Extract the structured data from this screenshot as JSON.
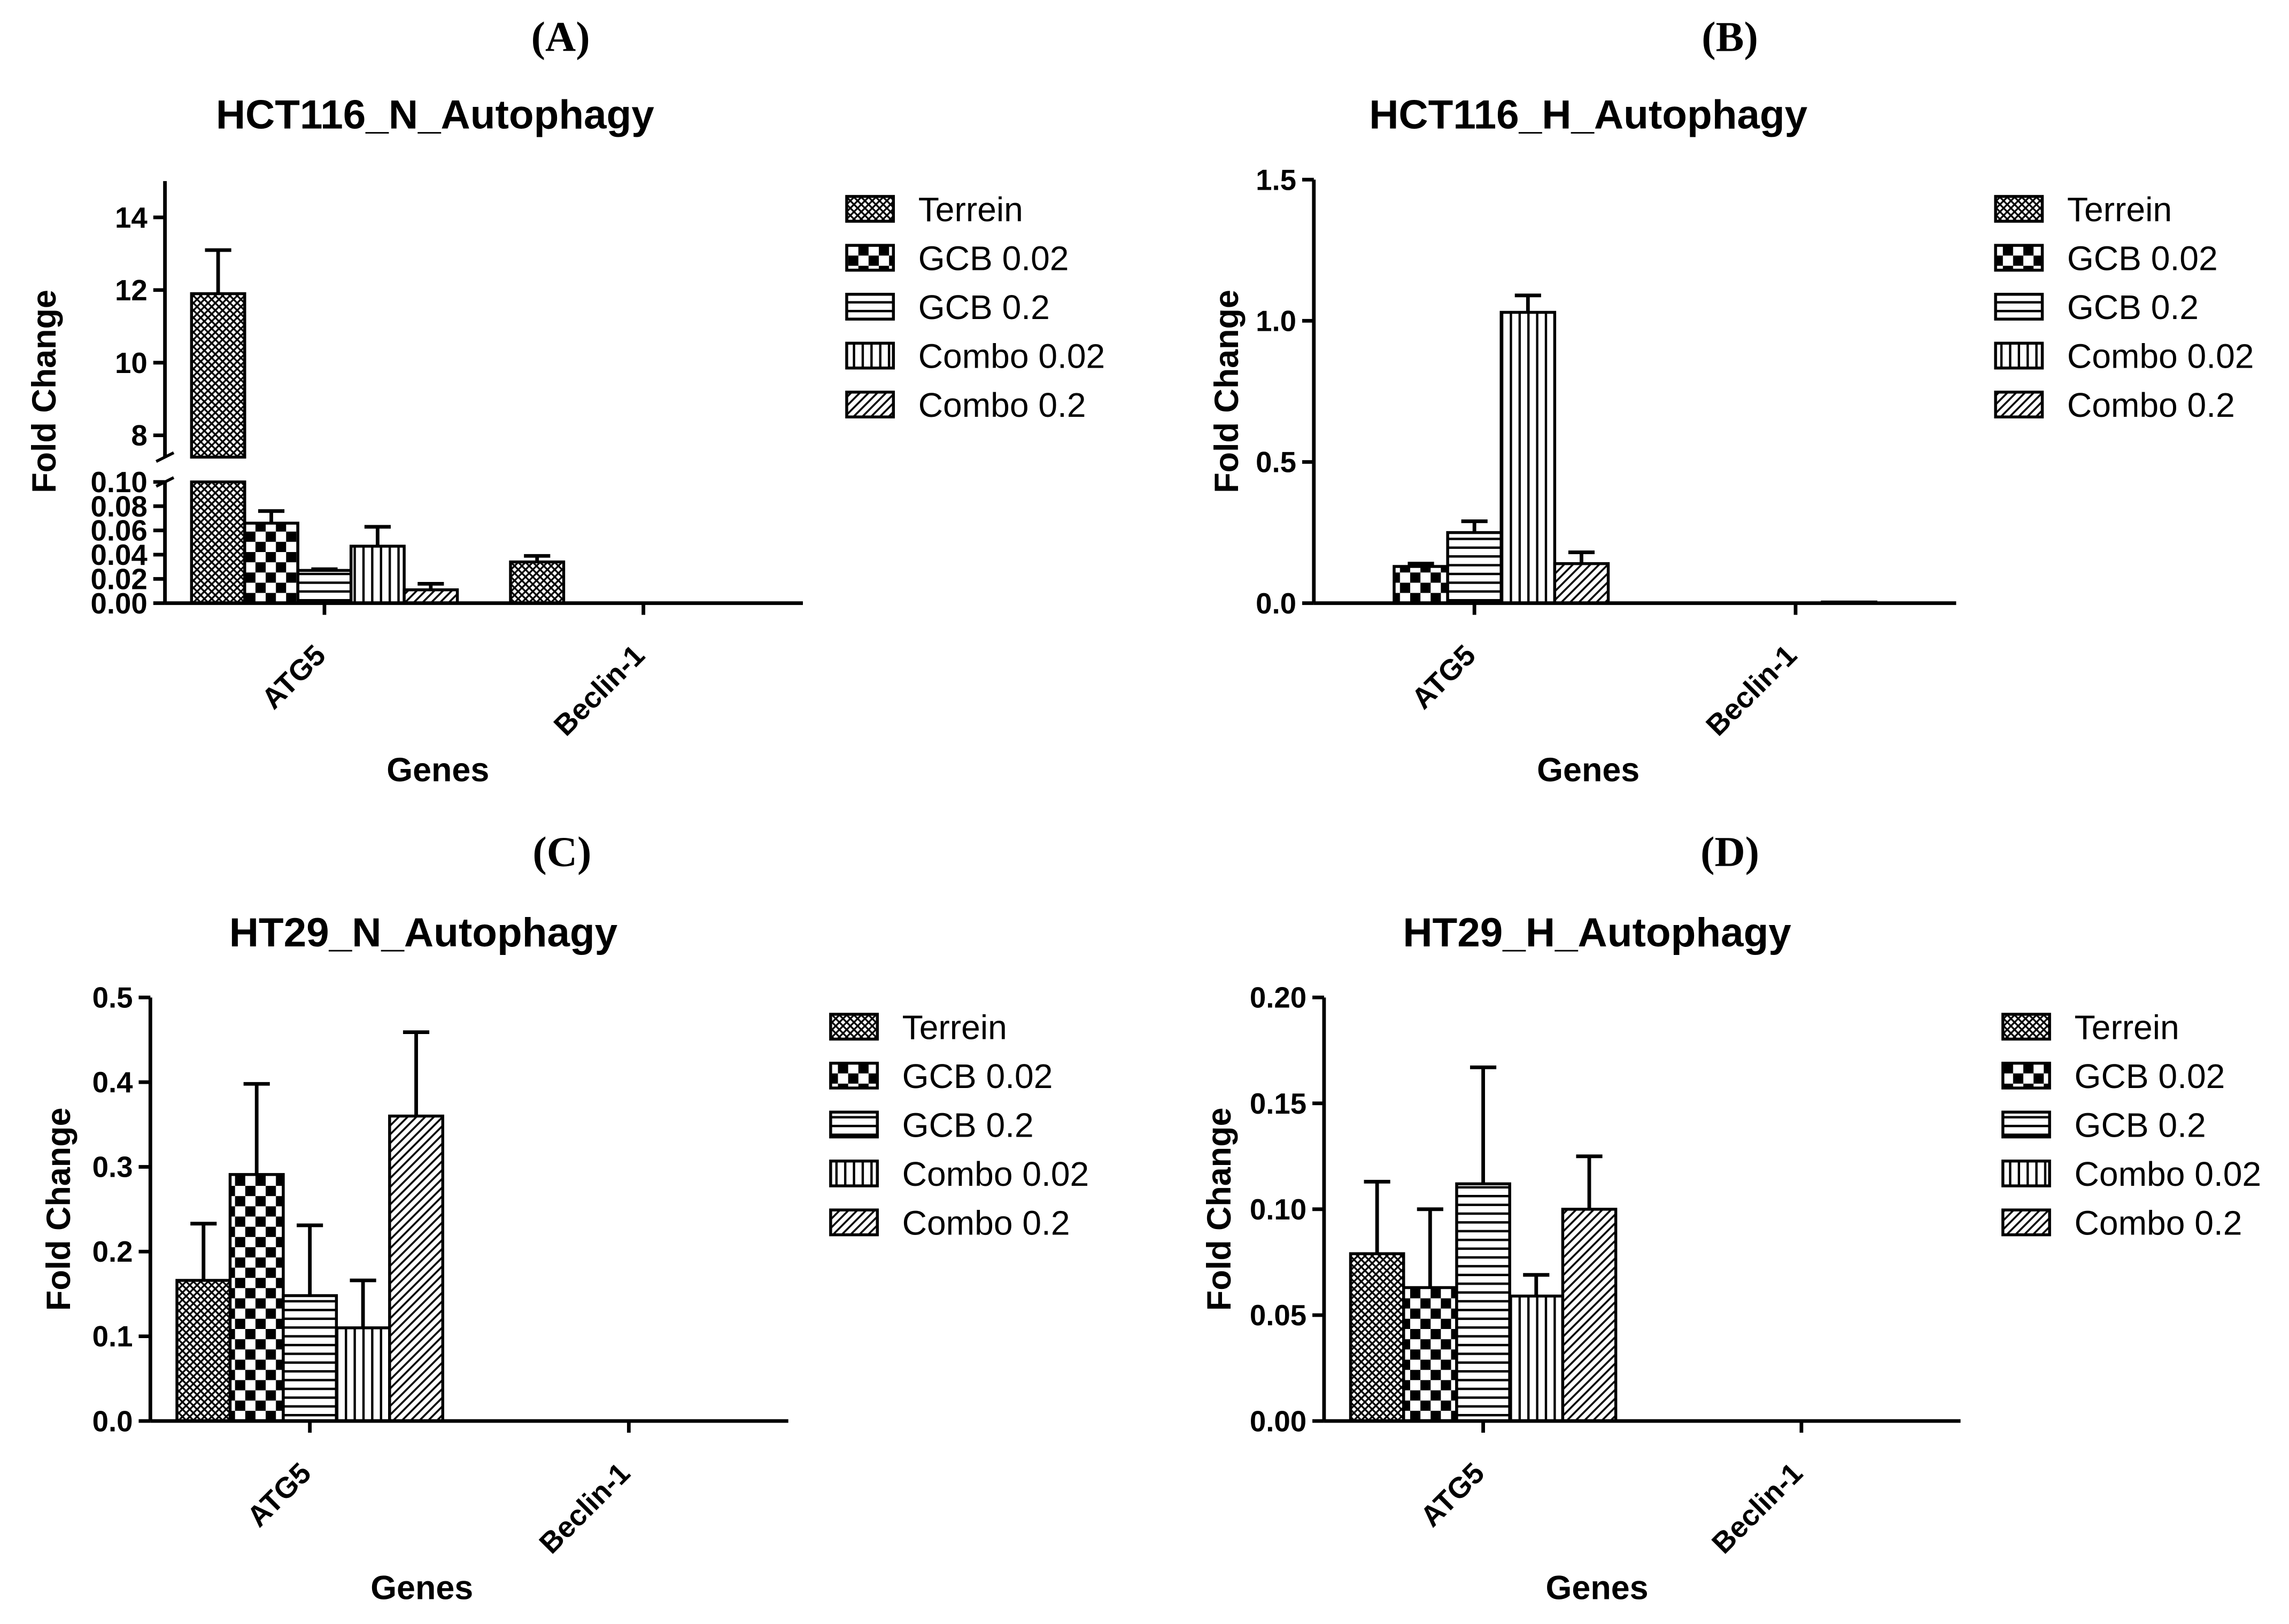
{
  "colors": {
    "ink": "#000000",
    "background": "#ffffff"
  },
  "chart_data": [
    {
      "panel_label": "(A)",
      "type": "bar",
      "title": "HCT116_N_Autophagy",
      "xlabel": "Genes",
      "ylabel": "Fold Change",
      "categories": [
        "ATG5",
        "Beclin-1"
      ],
      "series": [
        {
          "name": "Terrein",
          "values": [
            11.9,
            0.034
          ],
          "errors": [
            1.2,
            0.005
          ]
        },
        {
          "name": "GCB 0.02",
          "values": [
            0.066,
            0
          ],
          "errors": [
            0.01,
            0
          ]
        },
        {
          "name": "GCB 0.2",
          "values": [
            0.027,
            0
          ],
          "errors": [
            0.001,
            0
          ]
        },
        {
          "name": "Combo 0.02",
          "values": [
            0.047,
            0
          ],
          "errors": [
            0.016,
            0
          ]
        },
        {
          "name": "Combo 0.2",
          "values": [
            0.011,
            0
          ],
          "errors": [
            0.005,
            0
          ]
        }
      ],
      "y_axis_broken": true,
      "ylim": [
        0,
        0.1
      ],
      "yticks": [
        "0.00",
        "0.02",
        "0.04",
        "0.06",
        "0.08",
        "0.10"
      ],
      "ylim_upper": [
        7.4,
        15
      ],
      "yticks_upper": [
        "8",
        "10",
        "12",
        "14"
      ],
      "grid": false,
      "legend": "right"
    },
    {
      "panel_label": "(B)",
      "type": "bar",
      "title": "HCT116_H_Autophagy",
      "xlabel": "Genes",
      "ylabel": "Fold Change",
      "categories": [
        "ATG5",
        "Beclin-1"
      ],
      "series": [
        {
          "name": "Terrein",
          "values": [
            0,
            0
          ],
          "errors": [
            0,
            0
          ]
        },
        {
          "name": "GCB 0.02",
          "values": [
            0.13,
            0
          ],
          "errors": [
            0.01,
            0
          ]
        },
        {
          "name": "GCB 0.2",
          "values": [
            0.25,
            0
          ],
          "errors": [
            0.04,
            0
          ]
        },
        {
          "name": "Combo 0.02",
          "values": [
            1.03,
            0.004
          ],
          "errors": [
            0.06,
            0
          ]
        },
        {
          "name": "Combo 0.2",
          "values": [
            0.14,
            0
          ],
          "errors": [
            0.04,
            0
          ]
        }
      ],
      "y_axis_broken": false,
      "ylim": [
        0,
        1.5
      ],
      "yticks": [
        "0.0",
        "0.5",
        "1.0",
        "1.5"
      ],
      "grid": false,
      "legend": "right"
    },
    {
      "panel_label": "(C)",
      "type": "bar",
      "title": "HT29_N_Autophagy",
      "xlabel": "Genes",
      "ylabel": "Fold Change",
      "categories": [
        "ATG5",
        "Beclin-1"
      ],
      "series": [
        {
          "name": "Terrein",
          "values": [
            0.166,
            0
          ],
          "errors": [
            0.067,
            0
          ]
        },
        {
          "name": "GCB 0.02",
          "values": [
            0.291,
            0
          ],
          "errors": [
            0.107,
            0
          ]
        },
        {
          "name": "GCB 0.2",
          "values": [
            0.148,
            0
          ],
          "errors": [
            0.083,
            0
          ]
        },
        {
          "name": "Combo 0.02",
          "values": [
            0.11,
            0
          ],
          "errors": [
            0.056,
            0
          ]
        },
        {
          "name": "Combo 0.2",
          "values": [
            0.36,
            0
          ],
          "errors": [
            0.099,
            0
          ]
        }
      ],
      "y_axis_broken": false,
      "ylim": [
        0,
        0.5
      ],
      "yticks": [
        "0.0",
        "0.1",
        "0.2",
        "0.3",
        "0.4",
        "0.5"
      ],
      "grid": false,
      "legend": "right"
    },
    {
      "panel_label": "(D)",
      "type": "bar",
      "title": "HT29_H_Autophagy",
      "xlabel": "Genes",
      "ylabel": "Fold Change",
      "categories": [
        "ATG5",
        "Beclin-1"
      ],
      "series": [
        {
          "name": "Terrein",
          "values": [
            0.079,
            0
          ],
          "errors": [
            0.034,
            0
          ]
        },
        {
          "name": "GCB 0.02",
          "values": [
            0.063,
            0
          ],
          "errors": [
            0.037,
            0
          ]
        },
        {
          "name": "GCB 0.2",
          "values": [
            0.112,
            0
          ],
          "errors": [
            0.055,
            0
          ]
        },
        {
          "name": "Combo 0.02",
          "values": [
            0.059,
            0
          ],
          "errors": [
            0.01,
            0
          ]
        },
        {
          "name": "Combo 0.2",
          "values": [
            0.1,
            0
          ],
          "errors": [
            0.025,
            0
          ]
        }
      ],
      "y_axis_broken": false,
      "ylim": [
        0,
        0.2
      ],
      "yticks": [
        "0.00",
        "0.05",
        "0.10",
        "0.15",
        "0.20"
      ],
      "grid": false,
      "legend": "right"
    }
  ]
}
